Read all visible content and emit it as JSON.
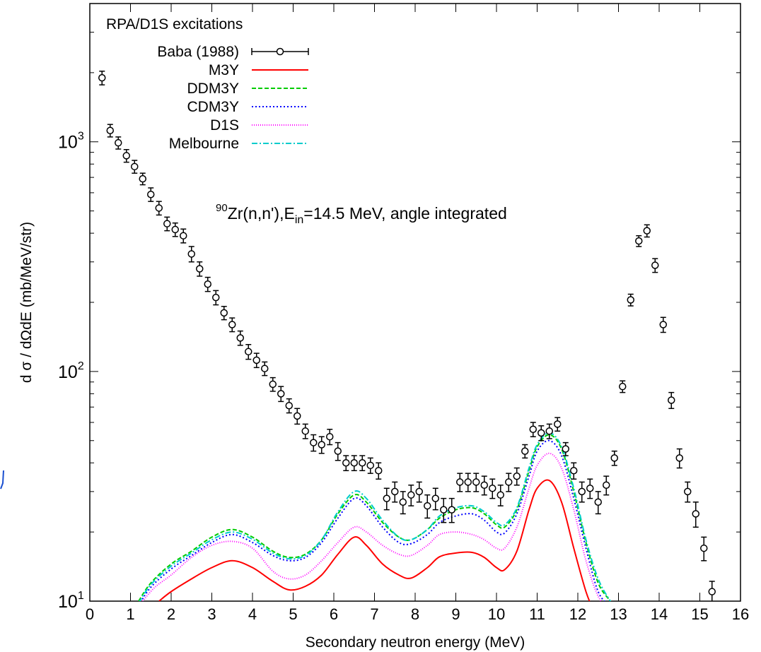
{
  "chart_data": {
    "type": "scatter",
    "legend_title": "RPA/D1S excitations",
    "annotation": {
      "superscript": "90",
      "text_a": "Zr(n,n'),E",
      "subscript": "in",
      "text_b": "=14.5 MeV, angle integrated"
    },
    "xlabel": "Secondary neutron energy (MeV)",
    "ylabel": "d σ / dΩdE (mb/MeV/str)",
    "xlim": [
      0,
      16
    ],
    "ylim": [
      10,
      4000
    ],
    "y_scale": "log",
    "grid": false,
    "legend_position": "top-left",
    "x_ticks": [
      "0",
      "1",
      "2",
      "3",
      "4",
      "5",
      "6",
      "7",
      "8",
      "9",
      "10",
      "11",
      "12",
      "13",
      "14",
      "15",
      "16"
    ],
    "y_ticks": [
      {
        "base": "10",
        "exp": "1",
        "value": 10
      },
      {
        "base": "10",
        "exp": "2",
        "value": 100
      },
      {
        "base": "10",
        "exp": "3",
        "value": 1000
      }
    ],
    "series": [
      {
        "name": "Baba (1988)",
        "kind": "points",
        "color": "#000000",
        "x": [
          0.3,
          0.5,
          0.7,
          0.9,
          1.1,
          1.3,
          1.5,
          1.7,
          1.9,
          2.1,
          2.3,
          2.5,
          2.7,
          2.9,
          3.1,
          3.3,
          3.5,
          3.7,
          3.9,
          4.1,
          4.3,
          4.5,
          4.7,
          4.9,
          5.1,
          5.3,
          5.5,
          5.7,
          5.9,
          6.1,
          6.3,
          6.5,
          6.7,
          6.9,
          7.1,
          7.3,
          7.5,
          7.7,
          7.9,
          8.1,
          8.3,
          8.5,
          8.7,
          8.9,
          9.1,
          9.3,
          9.5,
          9.7,
          9.9,
          10.1,
          10.3,
          10.5,
          10.7,
          10.9,
          11.1,
          11.3,
          11.5,
          11.7,
          11.9,
          12.1,
          12.3,
          12.5,
          12.7,
          12.9,
          13.1,
          13.3,
          13.5,
          13.7,
          13.9,
          14.1,
          14.3,
          14.5,
          14.7,
          14.9,
          15.1,
          15.3
        ],
        "y": [
          1900,
          1120,
          990,
          870,
          780,
          690,
          590,
          515,
          440,
          415,
          390,
          325,
          280,
          240,
          210,
          180,
          160,
          140,
          122,
          112,
          103,
          88,
          80,
          71,
          64,
          55,
          49,
          48,
          52,
          45,
          40,
          40,
          40,
          39,
          37,
          28,
          30,
          27,
          29,
          30,
          26,
          28,
          25,
          25,
          33,
          33,
          33,
          32,
          31,
          29,
          33,
          35,
          45,
          56,
          54,
          55,
          59,
          46,
          37,
          30,
          31,
          27,
          32,
          42,
          86,
          205,
          370,
          410,
          290,
          160,
          75,
          42,
          30,
          24,
          17,
          11
        ],
        "err": [
          130,
          70,
          60,
          55,
          50,
          40,
          40,
          35,
          30,
          28,
          27,
          25,
          20,
          17,
          15,
          12,
          11,
          10,
          9,
          8,
          7,
          6,
          6,
          5,
          5,
          4,
          4,
          4,
          4,
          4,
          3,
          3,
          3,
          3,
          3,
          3,
          3,
          3,
          3,
          3,
          3,
          3,
          3,
          3,
          3,
          3,
          3,
          3,
          3,
          3,
          3,
          3,
          3,
          4,
          4,
          4,
          4,
          3,
          3,
          3,
          3,
          3,
          3,
          3,
          5,
          12,
          20,
          25,
          20,
          12,
          6,
          4,
          3,
          3,
          2,
          1.2
        ]
      },
      {
        "name": "M3Y",
        "kind": "line",
        "color": "#ff0000",
        "dash": "",
        "x": [
          1.7,
          2.0,
          2.5,
          3.0,
          3.5,
          4.0,
          4.5,
          4.9,
          5.3,
          5.7,
          6.1,
          6.5,
          6.8,
          7.2,
          7.6,
          7.9,
          8.3,
          8.6,
          9.0,
          9.4,
          9.7,
          10.0,
          10.2,
          10.5,
          10.8,
          11.0,
          11.3,
          11.6,
          11.9,
          12.2,
          12.4
        ],
        "y": [
          10,
          11,
          12.5,
          14,
          15,
          14,
          12.2,
          11.2,
          11.6,
          13,
          16,
          19,
          17.5,
          14.5,
          13,
          12.6,
          14,
          15.6,
          16.2,
          16.3,
          15.5,
          14,
          13.7,
          16.5,
          25,
          31,
          33.5,
          27,
          17,
          11,
          9
        ]
      },
      {
        "name": "DDM3Y",
        "kind": "line",
        "color": "#00cc00",
        "dash": "6,3",
        "x": [
          1.2,
          1.5,
          2.0,
          2.5,
          3.0,
          3.5,
          4.0,
          4.5,
          4.9,
          5.3,
          5.7,
          6.1,
          6.5,
          6.8,
          7.2,
          7.6,
          7.9,
          8.3,
          8.6,
          9.0,
          9.4,
          9.7,
          10.0,
          10.2,
          10.5,
          10.8,
          11.0,
          11.3,
          11.6,
          11.9,
          12.2,
          12.5,
          12.8,
          13.0
        ],
        "y": [
          10,
          12,
          14.5,
          16.5,
          19,
          20.5,
          19,
          16.5,
          15.5,
          16,
          18.5,
          24,
          29,
          27,
          22,
          19,
          18.5,
          20.5,
          23,
          25,
          25.5,
          24,
          21.5,
          21,
          25,
          37,
          47,
          53,
          46,
          30,
          18,
          12,
          10,
          9
        ]
      },
      {
        "name": "CDM3Y",
        "kind": "line",
        "color": "#0000ff",
        "dash": "2,3",
        "x": [
          1.2,
          1.5,
          2.0,
          2.5,
          3.0,
          3.5,
          4.0,
          4.5,
          4.9,
          5.3,
          5.7,
          6.1,
          6.5,
          6.8,
          7.2,
          7.6,
          7.9,
          8.3,
          8.6,
          9.0,
          9.4,
          9.7,
          10.0,
          10.2,
          10.5,
          10.8,
          11.0,
          11.3,
          11.6,
          11.9,
          12.2,
          12.5,
          12.8,
          13.0
        ],
        "y": [
          9.6,
          11.5,
          13.8,
          15.8,
          18,
          19.5,
          18,
          15.8,
          15,
          15.5,
          18,
          23,
          28,
          26,
          21,
          18,
          17.8,
          19.5,
          22,
          23.5,
          24,
          22.5,
          20,
          19.8,
          24,
          35,
          45,
          50,
          43,
          28,
          17,
          11,
          9.5,
          9
        ]
      },
      {
        "name": "D1S",
        "kind": "line",
        "color": "#ff00ff",
        "dash": "1,2",
        "x": [
          1.3,
          1.6,
          2.0,
          2.5,
          3.0,
          3.5,
          4.0,
          4.5,
          4.9,
          5.3,
          5.7,
          6.1,
          6.5,
          6.8,
          7.2,
          7.6,
          7.9,
          8.3,
          8.6,
          9.0,
          9.4,
          9.7,
          10.0,
          10.2,
          10.5,
          10.8,
          11.0,
          11.3,
          11.6,
          11.9,
          12.2,
          12.5,
          12.8
        ],
        "y": [
          10,
          11.5,
          13,
          15.5,
          17.5,
          18.2,
          17,
          13.5,
          12.5,
          13,
          15,
          18,
          21,
          20,
          17.5,
          16,
          15.8,
          17.5,
          19.5,
          20,
          19.5,
          18.5,
          17,
          17,
          21,
          31,
          39,
          44,
          38,
          25,
          15,
          10.5,
          9
        ]
      },
      {
        "name": "Melbourne",
        "kind": "line",
        "color": "#00cccc",
        "dash": "8,3,2,3",
        "x": [
          1.2,
          1.5,
          2.0,
          2.5,
          3.0,
          3.5,
          4.0,
          4.5,
          4.9,
          5.3,
          5.7,
          6.1,
          6.5,
          6.8,
          7.2,
          7.6,
          7.9,
          8.3,
          8.6,
          9.0,
          9.4,
          9.7,
          10.0,
          10.2,
          10.5,
          10.8,
          11.0,
          11.3,
          11.6,
          11.9,
          12.2,
          12.5,
          12.8,
          13.0
        ],
        "y": [
          9.8,
          11.8,
          14.2,
          16.2,
          18.5,
          20,
          18.6,
          16.2,
          15.3,
          15.8,
          18.5,
          24.5,
          30,
          28,
          22.5,
          19,
          18.5,
          20.5,
          23.5,
          25.5,
          26,
          24.5,
          22,
          21.5,
          25.5,
          38,
          48,
          54,
          47,
          31,
          18.5,
          12.5,
          10,
          9
        ]
      }
    ]
  }
}
